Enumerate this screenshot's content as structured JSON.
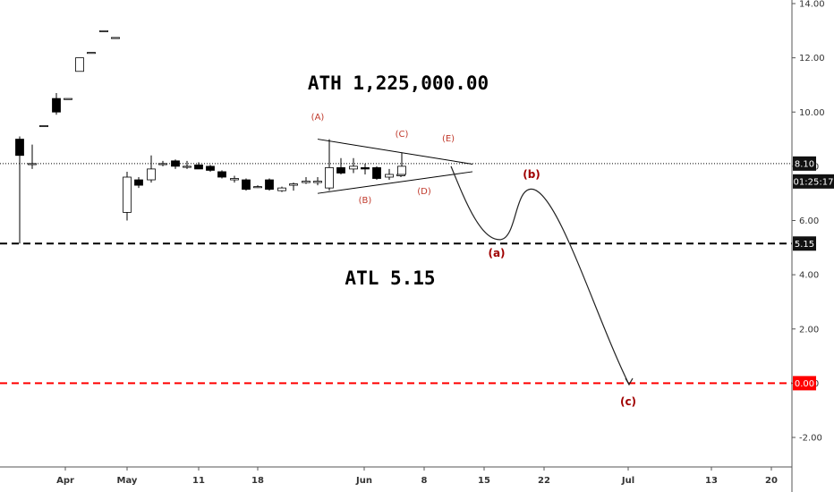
{
  "chart_data": {
    "type": "candlestick",
    "y_axis": {
      "ticks": [
        "14.00",
        "12.00",
        "10.00",
        "8.00",
        "6.00",
        "4.00",
        "2.00",
        "0.00",
        "-2.00"
      ],
      "range": [
        -3.2,
        14.2
      ]
    },
    "x_axis": {
      "ticks": [
        "Apr",
        "May",
        "11",
        "18",
        "Jun",
        "8",
        "15",
        "22",
        "Jul",
        "13",
        "20"
      ]
    },
    "candles": [
      {
        "o": 9.0,
        "h": 9.1,
        "l": 5.15,
        "c": 8.4
      },
      {
        "o": 8.1,
        "h": 8.8,
        "l": 7.9,
        "c": 8.1
      },
      {
        "o": 9.5,
        "h": 9.5,
        "l": 9.5,
        "c": 9.5
      },
      {
        "o": 10.5,
        "h": 10.7,
        "l": 9.9,
        "c": 10.0
      },
      {
        "o": 10.5,
        "h": 10.5,
        "l": 10.5,
        "c": 10.5
      },
      {
        "o": 11.5,
        "h": 12.0,
        "l": 11.5,
        "c": 12.0
      },
      {
        "o": 12.2,
        "h": 12.2,
        "l": 12.2,
        "c": 12.2
      },
      {
        "o": 13.0,
        "h": 13.0,
        "l": 13.0,
        "c": 13.0
      },
      {
        "o": 12.75,
        "h": 12.75,
        "l": 12.75,
        "c": 12.75
      },
      {
        "o": 6.3,
        "h": 7.8,
        "l": 6.0,
        "c": 7.6
      },
      {
        "o": 7.5,
        "h": 7.6,
        "l": 7.2,
        "c": 7.3
      },
      {
        "o": 7.5,
        "h": 8.4,
        "l": 7.4,
        "c": 7.9
      },
      {
        "o": 8.1,
        "h": 8.2,
        "l": 8.0,
        "c": 8.1
      },
      {
        "o": 8.2,
        "h": 8.25,
        "l": 7.9,
        "c": 8.0
      },
      {
        "o": 8.0,
        "h": 8.2,
        "l": 7.9,
        "c": 8.0
      },
      {
        "o": 8.05,
        "h": 8.15,
        "l": 7.9,
        "c": 7.9
      },
      {
        "o": 8.0,
        "h": 8.05,
        "l": 7.8,
        "c": 7.85
      },
      {
        "o": 7.8,
        "h": 7.85,
        "l": 7.55,
        "c": 7.6
      },
      {
        "o": 7.5,
        "h": 7.65,
        "l": 7.4,
        "c": 7.55
      },
      {
        "o": 7.5,
        "h": 7.55,
        "l": 7.1,
        "c": 7.15
      },
      {
        "o": 7.25,
        "h": 7.3,
        "l": 7.2,
        "c": 7.25
      },
      {
        "o": 7.5,
        "h": 7.55,
        "l": 7.1,
        "c": 7.15
      },
      {
        "o": 7.1,
        "h": 7.25,
        "l": 7.05,
        "c": 7.2
      },
      {
        "o": 7.3,
        "h": 7.4,
        "l": 7.1,
        "c": 7.35
      },
      {
        "o": 7.4,
        "h": 7.6,
        "l": 7.35,
        "c": 7.45
      },
      {
        "o": 7.4,
        "h": 7.6,
        "l": 7.3,
        "c": 7.45
      },
      {
        "o": 7.2,
        "h": 9.0,
        "l": 7.1,
        "c": 7.95
      },
      {
        "o": 7.95,
        "h": 8.3,
        "l": 7.7,
        "c": 7.75
      },
      {
        "o": 7.9,
        "h": 8.3,
        "l": 7.75,
        "c": 8.0
      },
      {
        "o": 7.95,
        "h": 8.1,
        "l": 7.7,
        "c": 7.9
      },
      {
        "o": 7.95,
        "h": 8.0,
        "l": 7.5,
        "c": 7.55
      },
      {
        "o": 7.6,
        "h": 7.9,
        "l": 7.5,
        "c": 7.7
      },
      {
        "o": 7.65,
        "h": 7.8,
        "l": 7.6,
        "c": 7.7
      },
      {
        "o": 7.7,
        "h": 8.5,
        "l": 7.7,
        "c": 8.0
      }
    ],
    "horizontal_lines": [
      {
        "label": "5.15",
        "value": 5.15,
        "style": "dashed",
        "color": "#000000"
      },
      {
        "label": "0.00",
        "value": 0.0,
        "style": "dashed",
        "color": "#ff0000"
      },
      {
        "label": "8.10",
        "value": 8.1,
        "style": "dotted",
        "color": "#000000"
      }
    ],
    "countdown_label": "01:25:17",
    "annotations": {
      "ath": "ATH 1,225,000.00",
      "atl": "ATL 5.15"
    },
    "wave_labels_small": [
      "(A)",
      "(B)",
      "(C)",
      "(D)",
      "(E)"
    ],
    "wave_labels_large": [
      "(a)",
      "(b)",
      "(c)"
    ],
    "grid": false
  }
}
